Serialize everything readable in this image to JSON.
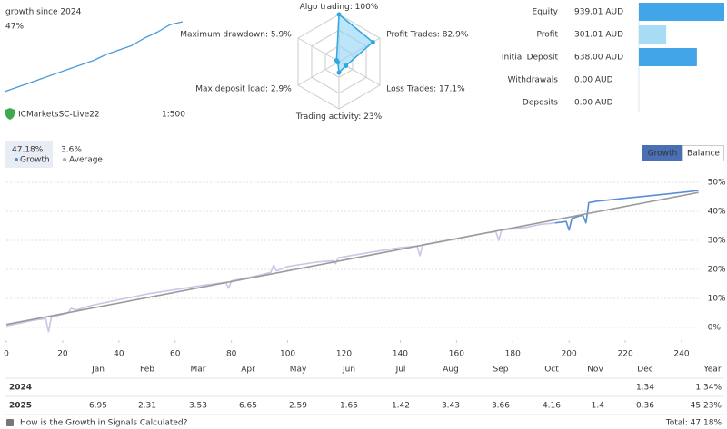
{
  "header": {
    "caption": "growth since 2024",
    "growth": "47%",
    "server": "ICMarketsSC-Live22",
    "leverage": "1:500"
  },
  "tabs": [
    {
      "value": "47.18%",
      "label": "Growth"
    },
    {
      "value": "3.6%",
      "label": "Average"
    }
  ],
  "buttons": [
    "Growth",
    "Balance"
  ],
  "chart_data": [
    {
      "type": "line",
      "color": "#4a9ad8",
      "x": [
        0,
        1,
        2,
        3,
        4,
        5,
        6,
        7,
        8,
        9,
        10,
        11,
        12,
        13,
        14
      ],
      "values": [
        0,
        3,
        6,
        9,
        12,
        15,
        18,
        21,
        25,
        28,
        31,
        36,
        40,
        45,
        47
      ],
      "xlim": [
        0,
        14
      ],
      "ylim": [
        0,
        47
      ]
    },
    {
      "type": "radar",
      "labels": [
        "Algo trading: 100%",
        "Profit Trades: 82.9%",
        "Loss Trades: 17.1%",
        "Trading activity: 23%",
        "Max deposit load: 2.9%",
        "Maximum drawdown: 5.9%"
      ],
      "values": [
        100,
        82.9,
        17.1,
        23,
        2.9,
        5.9
      ],
      "ylim": [
        0,
        100
      ],
      "color": "#2fa7e0"
    },
    {
      "type": "bar",
      "orientation": "horizontal",
      "categories": [
        "Equity",
        "Profit",
        "Initial Deposit",
        "Withdrawals",
        "Deposits"
      ],
      "values": [
        939.01,
        301.01,
        638.0,
        0,
        0
      ],
      "value_labels": [
        "939.01 AUD",
        "301.01 AUD",
        "638.00 AUD",
        "0.00 AUD",
        "0.00 AUD"
      ],
      "colors": [
        "#42a5e8",
        "#a8dcf5",
        "#42a5e8",
        "#42a5e8",
        "#42a5e8"
      ],
      "xlim": [
        0,
        939.01
      ]
    },
    {
      "type": "line",
      "grid": true,
      "xlim": [
        0,
        246
      ],
      "ylim": [
        -4.4,
        51
      ],
      "xticks": [
        0,
        20,
        40,
        60,
        80,
        100,
        120,
        140,
        160,
        180,
        200,
        220,
        240
      ],
      "yticks": [
        {
          "value": 0,
          "label": "0%"
        },
        {
          "value": 10,
          "label": "10%"
        },
        {
          "value": 20,
          "label": "20%"
        },
        {
          "value": 30,
          "label": "30%"
        },
        {
          "value": 40,
          "label": "40%"
        },
        {
          "value": 50,
          "label": "50%"
        }
      ],
      "series": [
        {
          "color": "#c9c6ea",
          "x": [
            0,
            5,
            10,
            14,
            15,
            16,
            20,
            22,
            23,
            25,
            30,
            40,
            50,
            60,
            70,
            78,
            79,
            80,
            90,
            94,
            95,
            96,
            100,
            110,
            116,
            117,
            118,
            130,
            140,
            146,
            147,
            148,
            160,
            170,
            174,
            175,
            176,
            185,
            190,
            195
          ],
          "values": [
            0.5,
            1.5,
            2.5,
            3,
            -1.5,
            3.5,
            4.5,
            5,
            6.5,
            6,
            7.5,
            9.5,
            11.5,
            13,
            14.5,
            15.5,
            13.5,
            16,
            18,
            19,
            21.5,
            19.5,
            21,
            22.5,
            23,
            22,
            24,
            26,
            27.5,
            28,
            24.7,
            28.5,
            30.5,
            32.5,
            33,
            30,
            33.5,
            34.5,
            35.5,
            36
          ]
        },
        {
          "color": "#5b8dd6",
          "x": [
            195,
            199,
            200,
            201,
            204,
            205,
            206,
            207,
            210,
            215,
            220,
            230,
            240,
            246
          ],
          "values": [
            36,
            36.5,
            33.5,
            37.5,
            38.5,
            38.5,
            36,
            43,
            43.5,
            44,
            44.5,
            45.5,
            46.5,
            47.2
          ]
        },
        {
          "color": "#9a9a9a",
          "x": [
            0,
            246
          ],
          "values": [
            1,
            46.5
          ]
        }
      ]
    }
  ],
  "table": {
    "columns": [
      "Jan",
      "Feb",
      "Mar",
      "Apr",
      "May",
      "Jun",
      "Jul",
      "Aug",
      "Sep",
      "Oct",
      "Nov",
      "Dec",
      "Year"
    ],
    "rows": [
      {
        "year": "2024",
        "cells": [
          null,
          null,
          null,
          null,
          null,
          null,
          null,
          null,
          null,
          null,
          null,
          "1.34",
          "1.34%"
        ]
      },
      {
        "year": "2025",
        "cells": [
          "6.95",
          "2.31",
          "3.53",
          "6.65",
          "2.59",
          "1.65",
          "1.42",
          "3.43",
          "3.66",
          "4.16",
          "1.4",
          "0.36",
          "45.23%"
        ]
      }
    ]
  },
  "footer": {
    "link": "How is the Growth in Signals Calculated?",
    "total": "Total: 47.18%"
  }
}
